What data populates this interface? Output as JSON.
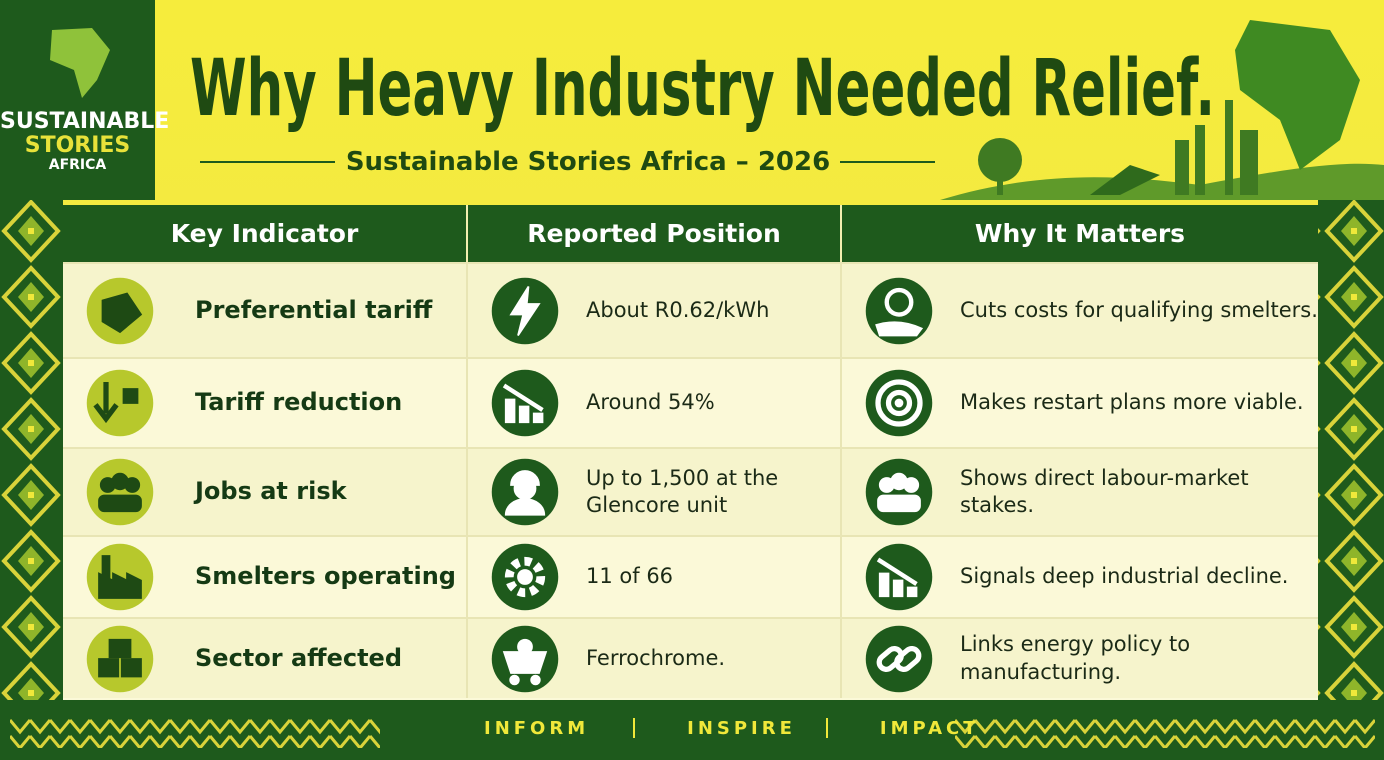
{
  "logo": {
    "lines": [
      "SUSTAINABLE",
      "STORIES",
      "AFRICA"
    ]
  },
  "header": {
    "title": "Why Heavy Industry Needed Relief.",
    "subtitle": "Sustainable Stories Africa – 2026"
  },
  "table": {
    "columns": [
      "Key Indicator",
      "Reported Position",
      "Why It Matters"
    ],
    "rows": [
      [
        "Preferential tariff",
        "About R0.62/kWh",
        "Cuts costs for qualifying smelters."
      ],
      [
        "Tariff reduction",
        "Around 54%",
        "Makes restart plans more viable."
      ],
      [
        "Jobs at risk",
        "Up to 1,500 at the Glencore unit",
        "Shows direct labour-market stakes."
      ],
      [
        "Smelters operating",
        "11 of 66",
        "Signals deep industrial decline."
      ],
      [
        "Sector affected",
        "Ferrochrome.",
        "Links energy policy to manufacturing."
      ]
    ]
  },
  "footer": {
    "items": [
      "INFORM",
      "INSPIRE",
      "IMPACT"
    ]
  }
}
